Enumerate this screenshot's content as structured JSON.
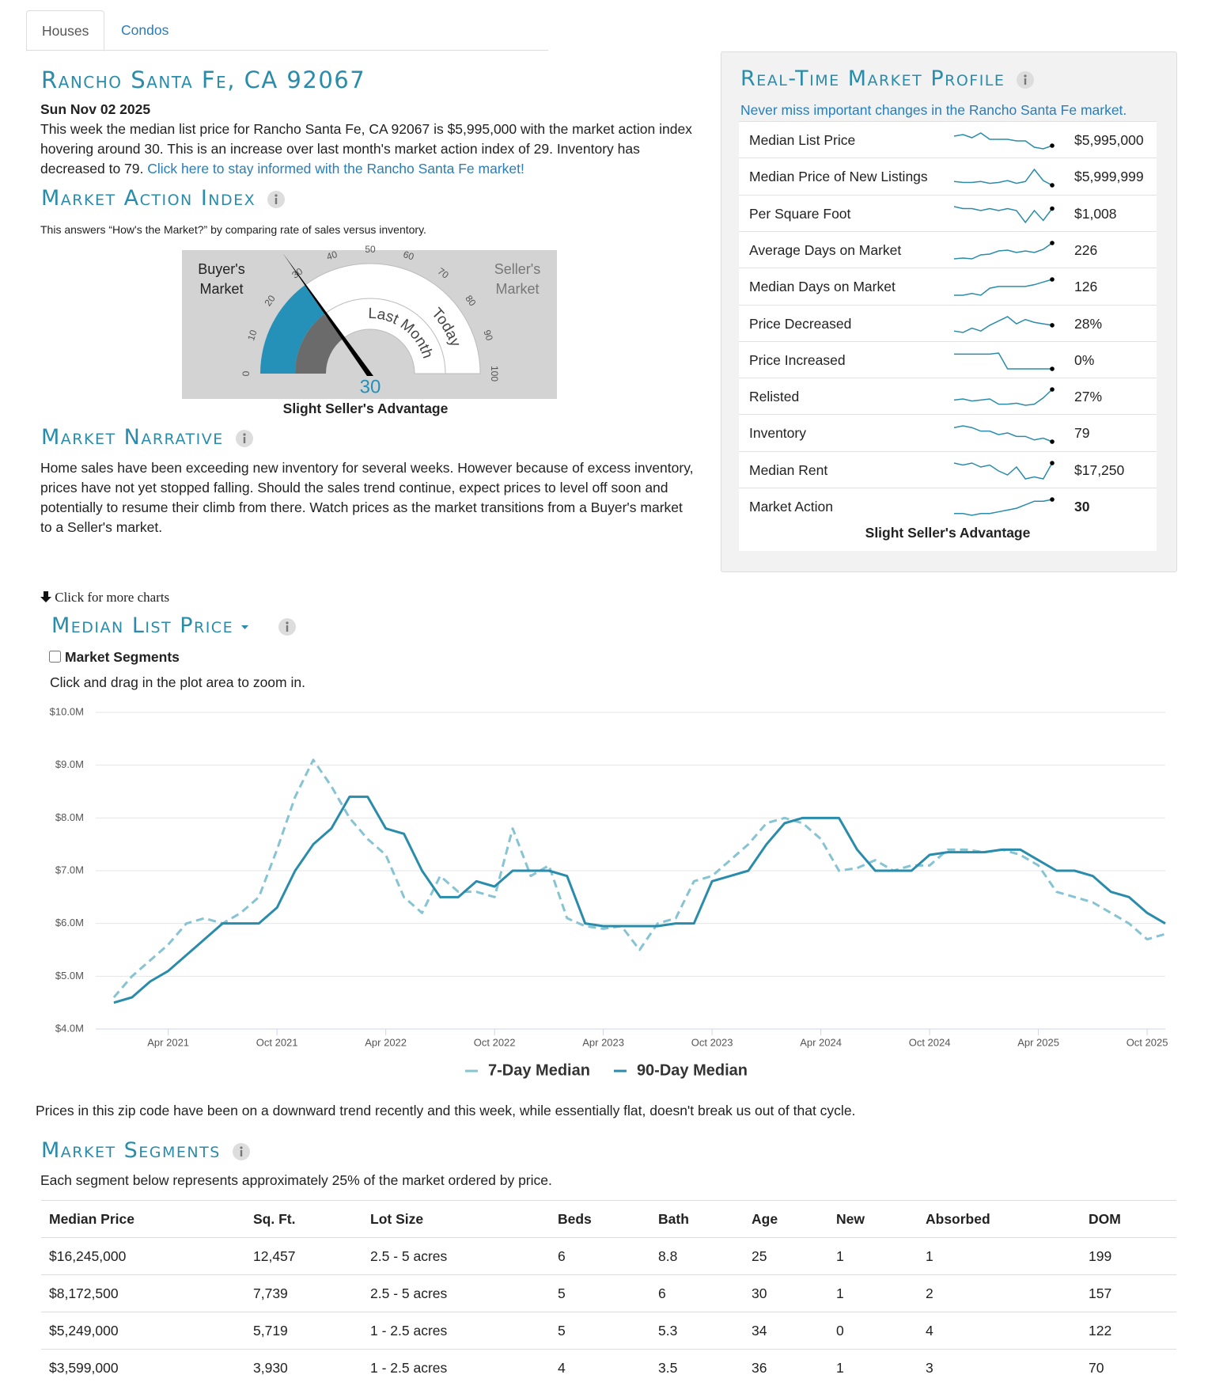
{
  "tabs": [
    "Houses",
    "Condos"
  ],
  "header": {
    "title": "Rancho Santa Fe, CA 92067",
    "date": "Sun Nov 02 2025",
    "intro_text": "This week the median list price for Rancho Santa Fe, CA 92067 is $5,995,000 with the market action index hovering around 30. This is an increase over last month's market action index of 29. Inventory has decreased to 79.",
    "intro_link": "Click here to stay informed with the Rancho Santa Fe market!"
  },
  "market_action": {
    "title": "Market Action Index",
    "subtitle": "This answers “How's the Market?” by comparing rate of sales versus inventory.",
    "gauge": {
      "value": 30,
      "value_label": "30",
      "last_month": 29,
      "ticks": [
        0,
        10,
        20,
        30,
        40,
        50,
        60,
        70,
        80,
        90,
        100
      ],
      "buyer_label": "Buyer's Market",
      "seller_label": "Seller's Market",
      "last_month_label": "Last Month",
      "today_label": "Today",
      "verdict": "Slight Seller's Advantage"
    }
  },
  "narrative": {
    "title": "Market Narrative",
    "text": "Home sales have been exceeding new inventory for several weeks. However because of excess inventory, prices have not yet stopped falling. Should the sales trend continue, expect prices to level off soon and potentially to resume their climb from there. Watch prices as the market transitions from a Buyer's market to a Seller's market."
  },
  "profile": {
    "title": "Real-Time Market Profile",
    "subtitle": "Never miss important changes in the Rancho Santa Fe market.",
    "rows": [
      {
        "label": "Median List Price",
        "value": "$5,995,000",
        "spark": [
          6.9,
          7.0,
          6.8,
          7.1,
          6.7,
          6.7,
          6.7,
          6.6,
          6.6,
          6.2,
          6.1,
          6.3
        ]
      },
      {
        "label": "Median Price of New Listings",
        "value": "$5,999,999",
        "spark": [
          5.2,
          5.1,
          5.1,
          5.2,
          5.0,
          5.1,
          5.3,
          5.0,
          5.2,
          6.5,
          5.3,
          4.8
        ]
      },
      {
        "label": "Per Square Foot",
        "value": "$1,008",
        "spark": [
          7.0,
          6.9,
          6.9,
          6.8,
          6.9,
          6.8,
          6.9,
          6.8,
          6.2,
          6.8,
          6.3,
          6.9
        ]
      },
      {
        "label": "Average Days on Market",
        "value": "226",
        "spark": [
          3.0,
          3.1,
          3.0,
          3.5,
          3.6,
          4.0,
          4.1,
          3.8,
          4.0,
          3.8,
          4.2,
          5.0
        ]
      },
      {
        "label": "Median Days on Market",
        "value": "126",
        "spark": [
          3.0,
          3.0,
          3.2,
          3.0,
          3.8,
          4.0,
          4.0,
          4.0,
          4.0,
          4.2,
          4.5,
          4.8
        ]
      },
      {
        "label": "Price Decreased",
        "value": "28%",
        "spark": [
          3.5,
          3.4,
          3.7,
          3.5,
          3.9,
          4.2,
          4.5,
          4.0,
          4.3,
          4.1,
          4.0,
          3.9
        ]
      },
      {
        "label": "Price Increased",
        "value": "0%",
        "spark": [
          5.0,
          5.0,
          5.0,
          5.0,
          5.0,
          5.1,
          3.6,
          3.6,
          3.6,
          3.6,
          3.6,
          3.6
        ]
      },
      {
        "label": "Relisted",
        "value": "27%",
        "spark": [
          4.0,
          4.1,
          3.9,
          4.0,
          4.1,
          3.6,
          3.6,
          3.7,
          3.5,
          3.6,
          4.2,
          5.0
        ]
      },
      {
        "label": "Inventory",
        "value": "79",
        "spark": [
          5.0,
          5.1,
          5.0,
          4.8,
          4.8,
          4.6,
          4.7,
          4.5,
          4.5,
          4.3,
          4.4,
          4.2
        ]
      },
      {
        "label": "Median Rent",
        "value": "$17,250",
        "spark": [
          5.0,
          4.9,
          5.0,
          4.8,
          4.9,
          4.6,
          4.4,
          4.8,
          4.2,
          4.3,
          4.2,
          5.0
        ]
      },
      {
        "label": "Market Action",
        "value": "30",
        "spark": [
          3.2,
          3.2,
          3.1,
          3.2,
          3.2,
          3.3,
          3.4,
          3.5,
          3.7,
          3.9,
          3.9,
          4.0
        ]
      }
    ],
    "verdict": "Slight Seller's Advantage"
  },
  "charts_link": "Click for more charts",
  "segments_toggle": "Market Segments",
  "zoom_hint": "Click and drag in the plot area to zoom in.",
  "chart_data": {
    "type": "line",
    "title": "Median List Price",
    "x": [
      "2021-01",
      "2021-02",
      "2021-03",
      "2021-04",
      "2021-05",
      "2021-06",
      "2021-07",
      "2021-08",
      "2021-09",
      "2021-10",
      "2021-11",
      "2021-12",
      "2022-01",
      "2022-02",
      "2022-03",
      "2022-04",
      "2022-05",
      "2022-06",
      "2022-07",
      "2022-08",
      "2022-09",
      "2022-10",
      "2022-11",
      "2022-12",
      "2023-01",
      "2023-02",
      "2023-03",
      "2023-04",
      "2023-05",
      "2023-06",
      "2023-07",
      "2023-08",
      "2023-09",
      "2023-10",
      "2023-11",
      "2023-12",
      "2024-01",
      "2024-02",
      "2024-03",
      "2024-04",
      "2024-05",
      "2024-06",
      "2024-07",
      "2024-08",
      "2024-09",
      "2024-10",
      "2024-11",
      "2024-12",
      "2025-01",
      "2025-02",
      "2025-03",
      "2025-04",
      "2025-05",
      "2025-06",
      "2025-07",
      "2025-08",
      "2025-09",
      "2025-10",
      "2025-11"
    ],
    "series": [
      {
        "name": "7-Day Median",
        "color": "#86c3d3",
        "dashed": true,
        "values": [
          4600000,
          5000000,
          5300000,
          5600000,
          6000000,
          6100000,
          6000000,
          6200000,
          6500000,
          7400000,
          8400000,
          9100000,
          8600000,
          8000000,
          7600000,
          7300000,
          6500000,
          6200000,
          6900000,
          6600000,
          6600000,
          6500000,
          7800000,
          6900000,
          7100000,
          6100000,
          5950000,
          5900000,
          5950000,
          5500000,
          6000000,
          6100000,
          6800000,
          6900000,
          7200000,
          7500000,
          7900000,
          8000000,
          7900000,
          7600000,
          7000000,
          7050000,
          7200000,
          7000000,
          7100000,
          7100000,
          7400000,
          7400000,
          7350000,
          7400000,
          7300000,
          7100000,
          6600000,
          6500000,
          6400000,
          6200000,
          6000000,
          5700000,
          5800000
        ]
      },
      {
        "name": "90-Day Median",
        "color": "#2a8cab",
        "dashed": false,
        "values": [
          4500000,
          4600000,
          4900000,
          5100000,
          5400000,
          5700000,
          6000000,
          6000000,
          6000000,
          6300000,
          7000000,
          7500000,
          7800000,
          8400000,
          8400000,
          7800000,
          7700000,
          7000000,
          6500000,
          6500000,
          6800000,
          6700000,
          7000000,
          7000000,
          7000000,
          6900000,
          6000000,
          5950000,
          5950000,
          5950000,
          5950000,
          6000000,
          6000000,
          6800000,
          6900000,
          7000000,
          7500000,
          7900000,
          8000000,
          8000000,
          8000000,
          7400000,
          7000000,
          7000000,
          7000000,
          7300000,
          7350000,
          7350000,
          7350000,
          7400000,
          7400000,
          7200000,
          7000000,
          7000000,
          6900000,
          6600000,
          6500000,
          6200000,
          6000000
        ]
      }
    ],
    "xlim": [
      "2020-12",
      "2025-11"
    ],
    "xticks": [
      {
        "value": "2021-04",
        "label": "Apr 2021"
      },
      {
        "value": "2021-10",
        "label": "Oct 2021"
      },
      {
        "value": "2022-04",
        "label": "Apr 2022"
      },
      {
        "value": "2022-10",
        "label": "Oct 2022"
      },
      {
        "value": "2023-04",
        "label": "Apr 2023"
      },
      {
        "value": "2023-10",
        "label": "Oct 2023"
      },
      {
        "value": "2024-04",
        "label": "Apr 2024"
      },
      {
        "value": "2024-10",
        "label": "Oct 2024"
      },
      {
        "value": "2025-04",
        "label": "Apr 2025"
      },
      {
        "value": "2025-10",
        "label": "Oct 2025"
      }
    ],
    "ylim": [
      4000000,
      10000000
    ],
    "yticks": [
      {
        "value": 4000000,
        "label": "$4.0M"
      },
      {
        "value": 5000000,
        "label": "$5.0M"
      },
      {
        "value": 6000000,
        "label": "$6.0M"
      },
      {
        "value": 7000000,
        "label": "$7.0M"
      },
      {
        "value": 8000000,
        "label": "$8.0M"
      },
      {
        "value": 9000000,
        "label": "$9.0M"
      },
      {
        "value": 10000000,
        "label": "$10.0M"
      }
    ],
    "grid": true
  },
  "chart_caption": "Prices in this zip code have been on a downward trend recently and this week, while essentially flat, doesn't break us out of that cycle.",
  "segments": {
    "title": "Market Segments",
    "subtitle": "Each segment below represents approximately 25% of the market ordered by price.",
    "header": [
      "Median Price",
      "Sq. Ft.",
      "Lot Size",
      "Beds",
      "Bath",
      "Age",
      "New",
      "Absorbed",
      "DOM"
    ],
    "rows": [
      [
        "$16,245,000",
        "12,457",
        "2.5 - 5 acres",
        "6",
        "8.8",
        "25",
        "1",
        "1",
        "199"
      ],
      [
        "$8,172,500",
        "7,739",
        "2.5 - 5 acres",
        "5",
        "6",
        "30",
        "1",
        "2",
        "157"
      ],
      [
        "$5,249,000",
        "5,719",
        "1 - 2.5 acres",
        "5",
        "5.3",
        "34",
        "0",
        "4",
        "122"
      ],
      [
        "$3,599,000",
        "3,930",
        "1 - 2.5 acres",
        "4",
        "3.5",
        "36",
        "1",
        "3",
        "70"
      ]
    ]
  }
}
